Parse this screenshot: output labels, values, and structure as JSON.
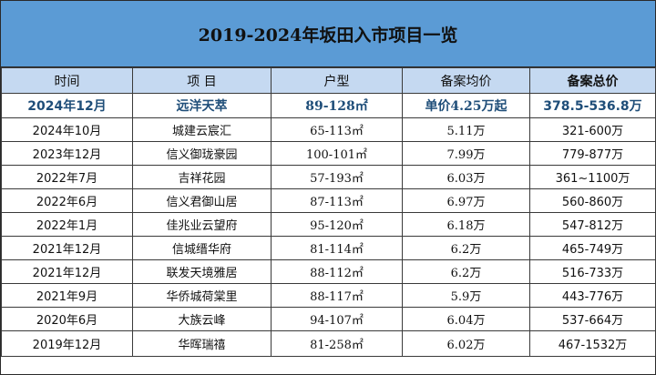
{
  "title": "2019-2024年坂田入市项目一览",
  "headers": [
    "时间",
    "项 目",
    "户型",
    "备案均价",
    "备案总价"
  ],
  "highlight": [
    "2024年12月",
    "远洋天萃",
    "89-128㎡",
    "单价4.25万起",
    "378.5-536.8万"
  ],
  "rows": [
    [
      "2024年10月",
      "城建云宸汇",
      "65-113㎡",
      "5.11万",
      "321-600万"
    ],
    [
      "2023年12月",
      "信义御珑豪园",
      "100-101㎡",
      "7.99万",
      "779-877万"
    ],
    [
      "2022年7月",
      "吉祥花园",
      "57-193㎡",
      "6.03万",
      "361~1100万"
    ],
    [
      "2022年6月",
      "信义君御山居",
      "87-113㎡",
      "6.97万",
      "560-860万"
    ],
    [
      "2022年1月",
      "佳兆业云望府",
      "95-120㎡",
      "6.18万",
      "547-812万"
    ],
    [
      "2021年12月",
      "信城缙华府",
      "81-114㎡",
      "6.2万",
      "465-749万"
    ],
    [
      "2021年12月",
      "联发天境雅居",
      "88-112㎡",
      "6.2万",
      "516-733万"
    ],
    [
      "2021年9月",
      "华侨城荷棠里",
      "88-117㎡",
      "5.9万",
      "443-776万"
    ],
    [
      "2020年6月",
      "大族云峰",
      "94-107㎡",
      "6.04万",
      "537-664万"
    ],
    [
      "2019年12月",
      "华晖瑞禧",
      "81-258㎡",
      "6.02万",
      "467-1532万"
    ]
  ],
  "colors": {
    "title_bg": "#5b9bd5",
    "header_bg": "#c5d9f1",
    "highlight_text": "#1f4e79"
  }
}
